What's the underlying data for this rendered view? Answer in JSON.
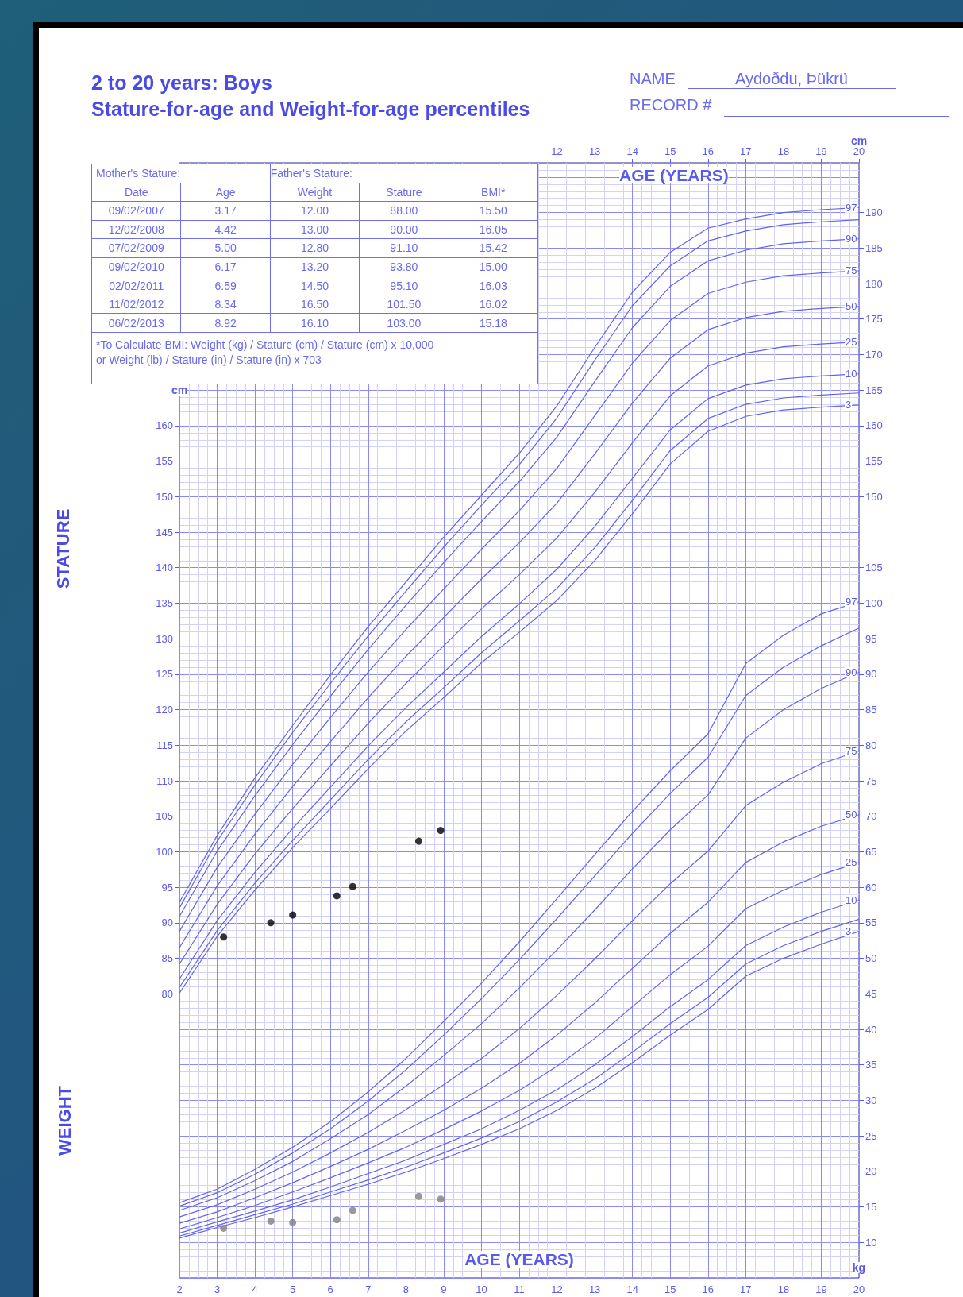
{
  "chart_data": {
    "type": "line",
    "title": "2 to 20 years: Boys",
    "subtitle": "Stature-for-age and Weight-for-age percentiles",
    "xlabel": "AGE (YEARS)",
    "x2label": "AGE (YEARS)",
    "xlim": [
      2,
      20
    ],
    "xticks": [
      2,
      3,
      4,
      5,
      6,
      7,
      8,
      9,
      10,
      11,
      12,
      13,
      14,
      15,
      16,
      17,
      18,
      19,
      20
    ],
    "x2lim": [
      2,
      20
    ],
    "x2ticks": [
      12,
      13,
      14,
      15,
      16,
      17,
      18,
      19,
      20
    ],
    "ylabel": "cm",
    "ylim": [
      40,
      197
    ],
    "yticks": [
      80,
      85,
      90,
      95,
      100,
      105,
      110,
      115,
      120,
      125,
      130,
      135,
      140,
      145,
      150,
      155,
      160
    ],
    "y2label": "kg",
    "y2lim": [
      5,
      162
    ],
    "y2ticks": [
      10,
      15,
      20,
      25,
      30,
      35,
      40,
      45,
      50,
      55,
      60,
      65,
      70,
      75,
      80,
      85,
      90,
      95,
      100,
      105
    ],
    "y3label": "cm",
    "y3lim": [
      40,
      197
    ],
    "y3ticks": [
      150,
      155,
      160,
      165,
      170,
      175,
      180,
      185,
      190
    ],
    "grid": true,
    "marker": "none",
    "x": [
      2,
      3,
      4,
      5,
      6,
      7,
      8,
      9,
      10,
      11,
      12,
      13,
      14,
      15,
      16,
      17,
      18,
      19,
      20
    ],
    "series": [
      {
        "name": "3",
        "color": "#6262ee",
        "values": [
          80.1,
          88.1,
          94.6,
          100.6,
          106.1,
          111.7,
          117.0,
          121.7,
          126.6,
          130.9,
          135.4,
          141.0,
          147.6,
          154.6,
          159.2,
          161.3,
          162.2,
          162.6,
          162.9
        ]
      },
      {
        "color": "#6262ee",
        "values": [
          80.9,
          88.9,
          95.6,
          101.6,
          107.3,
          113.0,
          118.3,
          123.1,
          128.0,
          132.5,
          137.1,
          142.8,
          149.5,
          156.5,
          161.0,
          163.0,
          163.9,
          164.3,
          164.6
        ]
      },
      {
        "name": "10",
        "color": "#6262ee",
        "values": [
          82.1,
          90.3,
          97.1,
          103.3,
          109.1,
          114.9,
          120.3,
          125.3,
          130.3,
          134.9,
          139.8,
          145.8,
          152.6,
          159.4,
          163.8,
          165.7,
          166.6,
          167.0,
          167.3
        ]
      },
      {
        "name": "25",
        "color": "#6262ee",
        "values": [
          84.2,
          92.6,
          99.7,
          106.1,
          112.1,
          118.1,
          123.7,
          129.0,
          134.2,
          139.0,
          144.2,
          150.6,
          157.6,
          164.2,
          168.4,
          170.2,
          171.1,
          171.5,
          171.8
        ]
      },
      {
        "name": "50",
        "color": "#6262ee",
        "values": [
          86.5,
          95.2,
          102.5,
          109.2,
          115.5,
          121.7,
          127.5,
          133.0,
          138.4,
          143.5,
          149.1,
          156.0,
          163.2,
          169.5,
          173.5,
          175.2,
          176.1,
          176.5,
          176.8
        ]
      },
      {
        "name": "75",
        "color": "#6262ee",
        "values": [
          88.8,
          97.8,
          105.3,
          112.3,
          118.9,
          125.3,
          131.3,
          137.0,
          142.6,
          148.0,
          154.0,
          161.4,
          168.8,
          174.8,
          178.6,
          180.2,
          181.1,
          181.5,
          181.8
        ]
      },
      {
        "name": "90",
        "color": "#6262ee",
        "values": [
          90.9,
          100.1,
          107.9,
          115.1,
          121.9,
          128.5,
          134.7,
          140.7,
          146.5,
          152.1,
          158.4,
          166.2,
          173.8,
          179.6,
          183.2,
          184.7,
          185.6,
          186.0,
          186.3
        ]
      },
      {
        "color": "#6262ee",
        "values": [
          92.1,
          101.5,
          109.4,
          116.8,
          123.7,
          130.4,
          136.7,
          142.9,
          148.8,
          154.5,
          161.1,
          169.2,
          176.9,
          182.5,
          186.0,
          187.4,
          188.3,
          188.7,
          189.0
        ]
      },
      {
        "name": "97",
        "color": "#6262ee",
        "values": [
          92.9,
          102.3,
          110.4,
          117.8,
          124.9,
          131.7,
          138.0,
          144.3,
          150.2,
          156.1,
          162.8,
          171.0,
          178.8,
          184.4,
          187.8,
          189.1,
          190.0,
          190.4,
          190.7
        ]
      },
      {
        "name": "3",
        "axis": "y2",
        "color": "#6262ee",
        "values": [
          10.6,
          12.1,
          13.5,
          15.0,
          16.6,
          18.2,
          19.9,
          21.8,
          23.8,
          26.0,
          28.6,
          31.7,
          35.3,
          39.2,
          42.8,
          47.5,
          50.0,
          52.0,
          53.8
        ]
      },
      {
        "axis": "y2",
        "color": "#6262ee",
        "values": [
          10.9,
          12.4,
          13.9,
          15.4,
          17.1,
          18.8,
          20.6,
          22.6,
          24.7,
          27.0,
          29.8,
          33.0,
          36.8,
          40.8,
          44.5,
          49.2,
          51.8,
          53.8,
          55.5
        ]
      },
      {
        "name": "10",
        "axis": "y2",
        "color": "#6262ee",
        "values": [
          11.3,
          12.9,
          14.4,
          16.0,
          17.8,
          19.7,
          21.6,
          23.8,
          26.0,
          28.6,
          31.5,
          35.0,
          39.0,
          43.2,
          47.0,
          51.8,
          54.4,
          56.5,
          58.2
        ]
      },
      {
        "name": "25",
        "axis": "y2",
        "color": "#6262ee",
        "values": [
          11.9,
          13.5,
          15.2,
          17.1,
          19.1,
          21.2,
          23.4,
          25.9,
          28.5,
          31.4,
          34.8,
          38.7,
          43.2,
          47.7,
          51.7,
          57.0,
          59.6,
          61.8,
          63.5
        ]
      },
      {
        "name": "50",
        "axis": "y2",
        "color": "#6262ee",
        "values": [
          12.7,
          14.3,
          16.3,
          18.4,
          20.7,
          23.1,
          25.8,
          28.6,
          31.7,
          35.2,
          39.2,
          43.7,
          48.6,
          53.5,
          57.9,
          63.5,
          66.4,
          68.6,
          70.2
        ]
      },
      {
        "name": "75",
        "axis": "y2",
        "color": "#6262ee",
        "values": [
          13.6,
          15.3,
          17.5,
          19.9,
          22.6,
          25.5,
          28.7,
          32.2,
          35.9,
          40.1,
          44.8,
          49.9,
          55.3,
          60.5,
          65.1,
          71.5,
          74.8,
          77.4,
          79.2
        ]
      },
      {
        "name": "90",
        "axis": "y2",
        "color": "#6262ee",
        "values": [
          14.5,
          16.3,
          18.7,
          21.4,
          24.6,
          28.0,
          32.0,
          36.3,
          40.8,
          45.8,
          51.2,
          56.8,
          62.6,
          68.1,
          73.0,
          81.0,
          85.0,
          88.0,
          90.3
        ]
      },
      {
        "axis": "y2",
        "color": "#6262ee",
        "values": [
          15.1,
          17.0,
          19.6,
          22.6,
          26.0,
          29.9,
          34.3,
          39.2,
          44.3,
          49.8,
          55.6,
          61.6,
          67.6,
          73.2,
          78.3,
          87.0,
          91.0,
          94.0,
          96.5
        ]
      },
      {
        "name": "97",
        "axis": "y2",
        "color": "#6262ee",
        "values": [
          15.6,
          17.5,
          20.3,
          23.4,
          27.0,
          31.2,
          35.9,
          41.1,
          46.5,
          52.3,
          58.4,
          64.6,
          70.7,
          76.4,
          81.6,
          91.5,
          95.5,
          98.5,
          100.2
        ]
      },
      {
        "type": "scatter",
        "marker": "circle",
        "color": "#000000",
        "x": [
          3.17,
          4.42,
          5.0,
          6.17,
          6.59,
          8.34,
          8.92
        ],
        "values": [
          88.0,
          90.0,
          91.1,
          93.8,
          95.1,
          101.5,
          103.0
        ]
      },
      {
        "type": "scatter",
        "marker": "circle",
        "axis": "y2",
        "color": "#808080",
        "x": [
          3.17,
          4.42,
          5.0,
          6.17,
          6.59,
          8.34,
          8.92
        ],
        "values": [
          12.0,
          13.0,
          12.8,
          13.2,
          14.5,
          16.5,
          16.1
        ]
      }
    ],
    "annotations": [
      "NAME",
      "Aydoðdu, Þükrü",
      "RECORD #",
      "Mother's Stature:",
      "Father's Stature:",
      "Date",
      "Age",
      "Weight",
      "Stature",
      "BMI*",
      "09/02/2007",
      "3.17",
      "12.00",
      "88.00",
      "15.50",
      "12/02/2008",
      "4.42",
      "13.00",
      "90.00",
      "16.05",
      "07/02/2009",
      "5.00",
      "12.80",
      "91.10",
      "15.42",
      "09/02/2010",
      "6.17",
      "13.20",
      "93.80",
      "15.00",
      "02/02/2011",
      "6.59",
      "14.50",
      "95.10",
      "16.03",
      "11/02/2012",
      "8.34",
      "16.50",
      "101.50",
      "16.02",
      "06/02/2013",
      "8.92",
      "16.10",
      "103.00",
      "15.18",
      "*To Calculate BMI: Weight (kg) / Stature (cm) / Stature (cm) x 10,000",
      "or Weight (lb) / Stature (in) / Stature (in) x 703",
      "STATURE",
      "WEIGHT"
    ]
  }
}
